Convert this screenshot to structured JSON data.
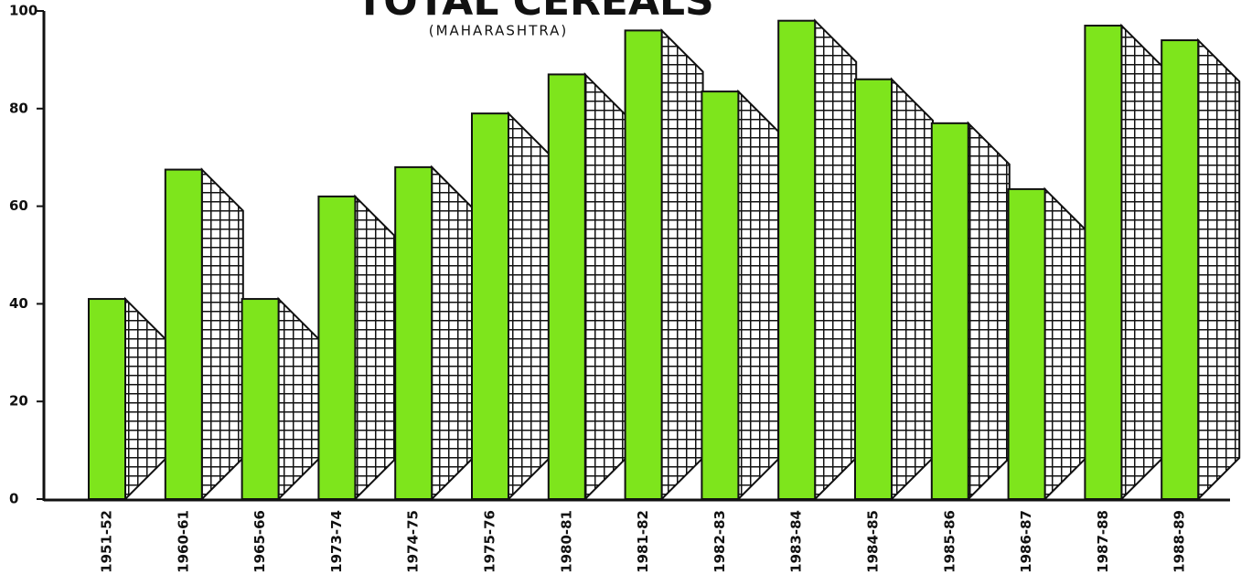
{
  "chart_data": {
    "type": "bar3d",
    "title": "TOTAL CEREALS",
    "subtitle": "(MAHARASHTRA)",
    "categories": [
      "1951-52",
      "1960-61",
      "1965-66",
      "1973-74",
      "1974-75",
      "1975-76",
      "1980-81",
      "1981-82",
      "1982-83",
      "1983-84",
      "1984-85",
      "1985-86",
      "1986-87",
      "1987-88",
      "1988-89"
    ],
    "values": [
      41,
      67.5,
      41,
      62,
      68,
      79,
      87,
      96,
      83.5,
      98,
      86,
      77,
      63.5,
      97,
      94
    ],
    "color": "#7ee51c",
    "ylim": [
      0,
      100
    ],
    "yticks": [
      0,
      20,
      40,
      60,
      80,
      100
    ]
  }
}
